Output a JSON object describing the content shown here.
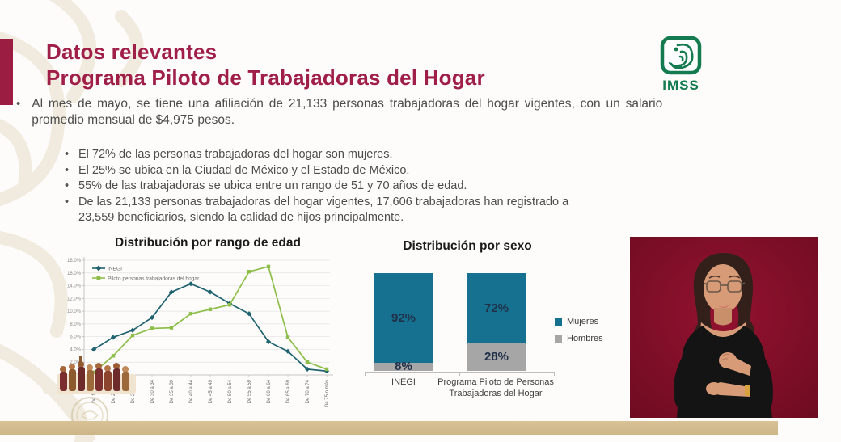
{
  "slide": {
    "title_line1": "Datos relevantes",
    "title_line2": "Programa Piloto de Trabajadoras del Hogar",
    "logo_text": "IMSS",
    "intro": "Al mes de mayo, se tiene una afiliación de 21,133 personas trabajadoras del hogar vigentes, con un salario promedio mensual de $4,975 pesos.",
    "sub_bullets": [
      "El 72% de las personas trabajadoras del hogar son mujeres.",
      "El 25% se ubica en la Ciudad de México y el Estado de México.",
      "55% de las trabajadoras se ubica entre un rango de 51 y 70 años de edad.",
      "De las 21,133 personas trabajadoras del hogar vigentes, 17,606 trabajadoras han registrado a 23,559 beneficiarios, siendo la calidad de hijos principalmente."
    ]
  },
  "chart_data": [
    {
      "type": "line",
      "title": "Distribución por rango de edad",
      "categories": [
        "De 15 a 19",
        "De 20 a 24",
        "De 25 a 29",
        "De 30 a 34",
        "De 35 a 39",
        "De 40 a 44",
        "De 45 a 49",
        "De 50 a 54",
        "De 55 a 59",
        "De 60 a 64",
        "De 65 a 69",
        "De 70 a 74",
        "De 75 o más"
      ],
      "series": [
        {
          "name": "INEGI",
          "color": "#1f6370",
          "marker": "diamond",
          "values": [
            4.0,
            5.9,
            7.0,
            9.0,
            13.0,
            14.3,
            13.0,
            11.2,
            9.6,
            5.2,
            3.7,
            0.9,
            0.6
          ]
        },
        {
          "name": "Piloto personas trabajadoras del hogar",
          "color": "#8dbe4a",
          "marker": "square",
          "values": [
            0.4,
            3.0,
            6.2,
            7.3,
            7.4,
            9.6,
            10.3,
            11.0,
            16.2,
            17.0,
            5.9,
            2.0,
            0.9
          ]
        }
      ],
      "ylim": [
        0,
        18
      ],
      "ytick_step": 2,
      "ytick_format": "percent_one_decimal",
      "grid": true,
      "legend_position": "top-left-inside"
    },
    {
      "type": "stacked-bar",
      "title": "Distribución por sexo",
      "categories": [
        "INEGI",
        "Programa Piloto de Personas Trabajadoras del Hogar"
      ],
      "series": [
        {
          "name": "Mujeres",
          "color": "#15718f",
          "values": [
            92,
            72
          ]
        },
        {
          "name": "Hombres",
          "color": "#a6a6a6",
          "values": [
            8,
            28
          ]
        }
      ],
      "value_label_suffix": "%",
      "legend_position": "right"
    }
  ],
  "colors": {
    "accent_maroon": "#9b1e42",
    "title_text": "#a01f48",
    "body_text": "#4d4d4d",
    "imss_green": "#147a50",
    "bottom_bar_tan": "#d3bd90",
    "video_background_red": "#87102a"
  }
}
